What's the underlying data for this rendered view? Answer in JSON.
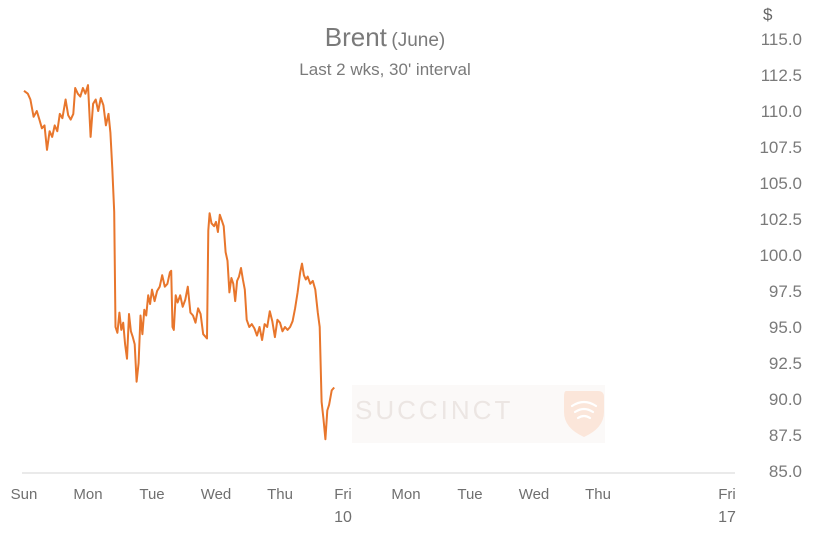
{
  "chart_data": {
    "type": "line",
    "title": "Brent",
    "title_suffix": "(June)",
    "subtitle": "Last 2 wks, 30' interval",
    "y_unit": "$",
    "ylim": [
      85.0,
      115.0
    ],
    "y_ticks": [
      "85.0",
      "87.5",
      "90.0",
      "92.5",
      "95.0",
      "97.5",
      "100.0",
      "102.5",
      "105.0",
      "107.5",
      "110.0",
      "112.5",
      "115.0"
    ],
    "x_ticks": [
      {
        "label": "Sun",
        "sub": "",
        "t": 0
      },
      {
        "label": "Mon",
        "sub": "",
        "t": 1
      },
      {
        "label": "Tue",
        "sub": "",
        "t": 2
      },
      {
        "label": "Wed",
        "sub": "",
        "t": 3
      },
      {
        "label": "Thu",
        "sub": "",
        "t": 4
      },
      {
        "label": "Fri",
        "sub": "10",
        "t": 5
      },
      {
        "label": "Mon",
        "sub": "",
        "t": 6
      },
      {
        "label": "Tue",
        "sub": "",
        "t": 7
      },
      {
        "label": "Wed",
        "sub": "",
        "t": 8
      },
      {
        "label": "Thu",
        "sub": "",
        "t": 9
      },
      {
        "label": "Fri",
        "sub": "17",
        "t": 10
      }
    ],
    "series": [
      {
        "color": "#e8762c",
        "points": [
          [
            0.0,
            111.4
          ],
          [
            0.06,
            111.2
          ],
          [
            0.1,
            110.8
          ],
          [
            0.15,
            109.6
          ],
          [
            0.2,
            110.0
          ],
          [
            0.24,
            109.4
          ],
          [
            0.28,
            108.8
          ],
          [
            0.32,
            109.0
          ],
          [
            0.36,
            107.3
          ],
          [
            0.4,
            108.6
          ],
          [
            0.44,
            108.2
          ],
          [
            0.48,
            109.0
          ],
          [
            0.52,
            108.6
          ],
          [
            0.56,
            109.8
          ],
          [
            0.6,
            109.5
          ],
          [
            0.65,
            110.8
          ],
          [
            0.69,
            109.7
          ],
          [
            0.73,
            109.4
          ],
          [
            0.77,
            109.8
          ],
          [
            0.8,
            111.6
          ],
          [
            0.84,
            111.2
          ],
          [
            0.88,
            111.0
          ],
          [
            0.92,
            111.6
          ],
          [
            0.96,
            111.2
          ],
          [
            1.0,
            111.8
          ],
          [
            1.04,
            108.2
          ],
          [
            1.08,
            110.5
          ],
          [
            1.12,
            110.8
          ],
          [
            1.16,
            110.0
          ],
          [
            1.2,
            110.9
          ],
          [
            1.24,
            110.4
          ],
          [
            1.28,
            109.0
          ],
          [
            1.32,
            109.8
          ],
          [
            1.35,
            108.5
          ],
          [
            1.38,
            106.0
          ],
          [
            1.41,
            103.0
          ],
          [
            1.43,
            95.0
          ],
          [
            1.46,
            94.6
          ],
          [
            1.49,
            96.0
          ],
          [
            1.52,
            94.8
          ],
          [
            1.55,
            95.3
          ],
          [
            1.58,
            93.8
          ],
          [
            1.61,
            92.8
          ],
          [
            1.64,
            95.9
          ],
          [
            1.67,
            94.7
          ],
          [
            1.7,
            94.3
          ],
          [
            1.73,
            93.8
          ],
          [
            1.76,
            91.2
          ],
          [
            1.79,
            92.5
          ],
          [
            1.82,
            95.8
          ],
          [
            1.85,
            94.5
          ],
          [
            1.88,
            96.2
          ],
          [
            1.91,
            95.8
          ],
          [
            1.94,
            97.2
          ],
          [
            1.97,
            96.6
          ],
          [
            2.0,
            97.6
          ],
          [
            2.04,
            96.8
          ],
          [
            2.08,
            97.5
          ],
          [
            2.12,
            97.8
          ],
          [
            2.16,
            98.6
          ],
          [
            2.2,
            97.8
          ],
          [
            2.24,
            98.0
          ],
          [
            2.28,
            98.8
          ],
          [
            2.3,
            98.9
          ],
          [
            2.32,
            95.0
          ],
          [
            2.34,
            94.8
          ],
          [
            2.37,
            97.2
          ],
          [
            2.4,
            96.7
          ],
          [
            2.44,
            97.2
          ],
          [
            2.48,
            96.4
          ],
          [
            2.52,
            96.9
          ],
          [
            2.56,
            97.8
          ],
          [
            2.6,
            96.0
          ],
          [
            2.64,
            95.8
          ],
          [
            2.68,
            95.3
          ],
          [
            2.72,
            96.3
          ],
          [
            2.76,
            95.9
          ],
          [
            2.8,
            94.5
          ],
          [
            2.84,
            94.3
          ],
          [
            2.86,
            94.2
          ],
          [
            2.88,
            101.7
          ],
          [
            2.9,
            102.9
          ],
          [
            2.93,
            102.2
          ],
          [
            2.97,
            102.0
          ],
          [
            3.0,
            102.3
          ],
          [
            3.03,
            101.6
          ],
          [
            3.06,
            102.8
          ],
          [
            3.09,
            102.4
          ],
          [
            3.12,
            102.0
          ],
          [
            3.15,
            100.2
          ],
          [
            3.18,
            99.6
          ],
          [
            3.21,
            97.4
          ],
          [
            3.24,
            98.4
          ],
          [
            3.27,
            98.0
          ],
          [
            3.3,
            96.8
          ],
          [
            3.33,
            98.2
          ],
          [
            3.36,
            98.5
          ],
          [
            3.39,
            99.1
          ],
          [
            3.42,
            98.3
          ],
          [
            3.45,
            97.6
          ],
          [
            3.48,
            95.5
          ],
          [
            3.52,
            95.0
          ],
          [
            3.56,
            95.2
          ],
          [
            3.6,
            94.9
          ],
          [
            3.64,
            94.4
          ],
          [
            3.68,
            95.0
          ],
          [
            3.72,
            94.1
          ],
          [
            3.76,
            95.2
          ],
          [
            3.8,
            95.0
          ],
          [
            3.84,
            96.1
          ],
          [
            3.88,
            95.4
          ],
          [
            3.92,
            94.3
          ],
          [
            3.96,
            95.5
          ],
          [
            4.0,
            95.3
          ],
          [
            4.04,
            94.7
          ],
          [
            4.08,
            95.0
          ],
          [
            4.12,
            94.8
          ],
          [
            4.16,
            95.0
          ],
          [
            4.2,
            95.4
          ],
          [
            4.24,
            96.3
          ],
          [
            4.28,
            97.4
          ],
          [
            4.32,
            98.8
          ],
          [
            4.35,
            99.4
          ],
          [
            4.38,
            98.6
          ],
          [
            4.41,
            98.3
          ],
          [
            4.44,
            98.5
          ],
          [
            4.48,
            98.0
          ],
          [
            4.52,
            98.2
          ],
          [
            4.56,
            97.6
          ],
          [
            4.6,
            96.0
          ],
          [
            4.63,
            95.0
          ],
          [
            4.66,
            89.8
          ],
          [
            4.69,
            88.6
          ],
          [
            4.72,
            87.2
          ],
          [
            4.75,
            89.2
          ],
          [
            4.78,
            89.6
          ],
          [
            4.82,
            90.6
          ],
          [
            4.86,
            90.8
          ]
        ]
      }
    ],
    "watermark": "SUCCINCT"
  }
}
